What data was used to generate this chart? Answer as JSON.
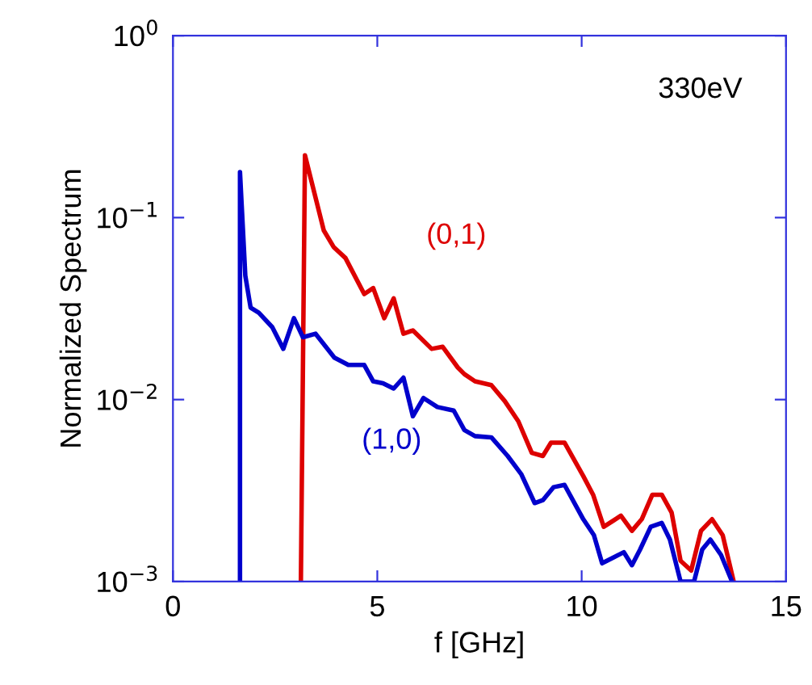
{
  "chart_data": {
    "type": "line",
    "xlabel": "f [GHz]",
    "ylabel": "Normalized Spectrum",
    "log": "y",
    "xlim": [
      0,
      15
    ],
    "xticks": [
      0,
      5,
      10,
      15
    ],
    "ylim": [
      0.001,
      1
    ],
    "yticks": [
      {
        "value": 0.001,
        "label": "10$^{−3}$"
      },
      {
        "value": 0.01,
        "label": "10$^{−2}$"
      },
      {
        "value": 0.1,
        "label": "10$^{−1}$"
      },
      {
        "value": 1,
        "label": "10$^{0}$"
      }
    ],
    "annotations": [
      "330eV"
    ],
    "grid": false,
    "legend": false,
    "series": [
      {
        "name": "(0,1)",
        "color": "#dd0000",
        "x": [
          3.13,
          3.23,
          3.69,
          3.93,
          4.22,
          4.68,
          4.9,
          5.17,
          5.4,
          5.64,
          5.87,
          6.33,
          6.6,
          6.97,
          7.13,
          7.39,
          7.79,
          8.12,
          8.45,
          8.78,
          9.05,
          9.25,
          9.58,
          10.04,
          10.28,
          10.54,
          10.96,
          11.23,
          11.47,
          11.73,
          11.96,
          12.2,
          12.42,
          12.68,
          12.92,
          13.19,
          13.45,
          13.72
        ],
        "values": [
          0.001,
          0.22,
          0.085,
          0.069,
          0.06,
          0.038,
          0.041,
          0.028,
          0.036,
          0.023,
          0.024,
          0.019,
          0.0195,
          0.015,
          0.0138,
          0.0126,
          0.012,
          0.0098,
          0.0076,
          0.0051,
          0.0049,
          0.0058,
          0.0058,
          0.0038,
          0.003,
          0.002,
          0.0023,
          0.0019,
          0.0022,
          0.003,
          0.003,
          0.0024,
          0.0013,
          0.00115,
          0.0019,
          0.0022,
          0.0018,
          0.001
        ]
      },
      {
        "name": "(1,0)",
        "color": "#0000cc",
        "x": [
          1.64,
          1.64,
          1.77,
          1.9,
          2.1,
          2.43,
          2.7,
          2.96,
          3.18,
          3.49,
          3.95,
          4.29,
          4.68,
          4.9,
          5.14,
          5.4,
          5.64,
          5.87,
          6.13,
          6.47,
          6.87,
          7.13,
          7.39,
          7.79,
          8.19,
          8.52,
          8.85,
          9.05,
          9.31,
          9.58,
          10.04,
          10.3,
          10.5,
          11.03,
          11.23,
          11.43,
          11.69,
          11.96,
          12.16,
          12.42,
          12.75,
          12.95,
          13.15,
          13.41,
          13.68
        ],
        "values": [
          0.001,
          0.178,
          0.048,
          0.032,
          0.03,
          0.025,
          0.019,
          0.028,
          0.022,
          0.023,
          0.017,
          0.0155,
          0.0155,
          0.0126,
          0.0123,
          0.0115,
          0.0132,
          0.0081,
          0.0102,
          0.0091,
          0.0087,
          0.0068,
          0.0063,
          0.0062,
          0.0049,
          0.0039,
          0.0027,
          0.0028,
          0.0033,
          0.0034,
          0.0022,
          0.0018,
          0.00126,
          0.00145,
          0.00123,
          0.0015,
          0.002,
          0.0021,
          0.0017,
          0.001,
          0.001,
          0.0015,
          0.0017,
          0.0014,
          0.001
        ]
      }
    ]
  }
}
